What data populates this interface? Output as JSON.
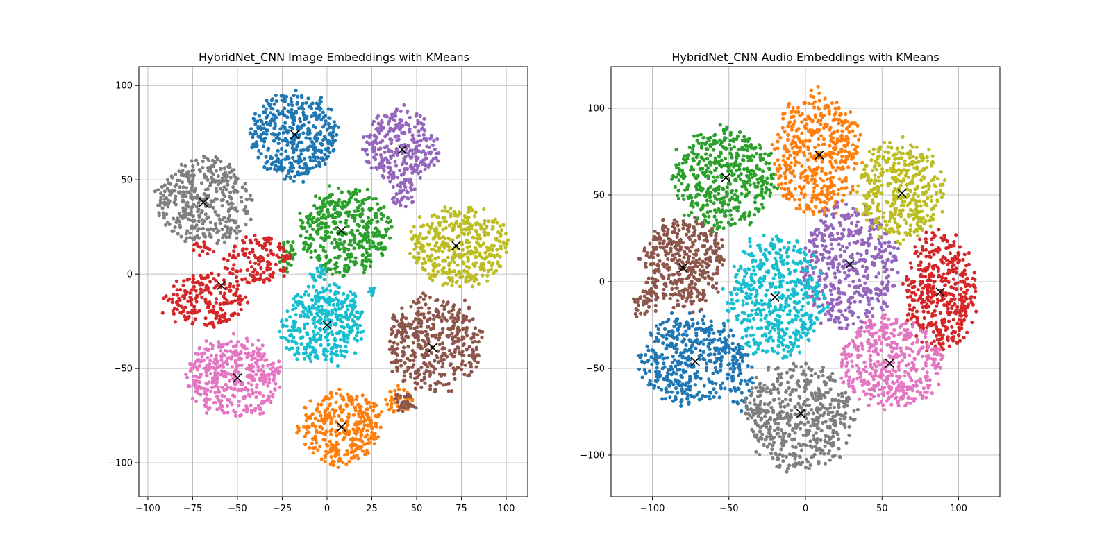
{
  "chart_data": [
    {
      "type": "scatter",
      "title": "HybridNet_CNN Image Embeddings with KMeans",
      "xlabel": "",
      "ylabel": "",
      "xlim": [
        -105,
        112
      ],
      "ylim": [
        -118,
        110
      ],
      "xticks": [
        -100,
        -75,
        -50,
        -25,
        0,
        25,
        50,
        75,
        100
      ],
      "xtick_labels": [
        "−100",
        "−75",
        "−50",
        "−25",
        "0",
        "25",
        "50",
        "75",
        "100"
      ],
      "yticks": [
        -100,
        -50,
        0,
        50,
        100
      ],
      "ytick_labels": [
        "−100",
        "−50",
        "0",
        "50",
        "100"
      ],
      "grid": true,
      "clusters": [
        {
          "color": "#1f77b4",
          "centroid": [
            -18,
            74
          ],
          "blobs": [
            {
              "cx": -18,
              "cy": 74,
              "rx": 25,
              "ry": 24,
              "n": 420
            }
          ]
        },
        {
          "color": "#ff7f0e",
          "centroid": [
            8,
            -81
          ],
          "blobs": [
            {
              "cx": 8,
              "cy": -81,
              "rx": 24,
              "ry": 20,
              "n": 330
            },
            {
              "cx": 40,
              "cy": -67,
              "rx": 8,
              "ry": 7,
              "n": 40
            }
          ]
        },
        {
          "color": "#2ca02c",
          "centroid": [
            8,
            23
          ],
          "blobs": [
            {
              "cx": 10,
              "cy": 23,
              "rx": 26,
              "ry": 24,
              "n": 420
            },
            {
              "cx": -22,
              "cy": 10,
              "rx": 5,
              "ry": 8,
              "n": 30
            }
          ]
        },
        {
          "color": "#d62728",
          "centroid": [
            -59,
            -6
          ],
          "blobs": [
            {
              "cx": -40,
              "cy": 8,
              "rx": 20,
              "ry": 13,
              "n": 150
            },
            {
              "cx": -68,
              "cy": -14,
              "rx": 25,
              "ry": 14,
              "n": 200
            },
            {
              "cx": -70,
              "cy": 13,
              "rx": 6,
              "ry": 3,
              "n": 15
            }
          ]
        },
        {
          "color": "#9467bd",
          "centroid": [
            42,
            66
          ],
          "blobs": [
            {
              "cx": 41,
              "cy": 67,
              "rx": 21,
              "ry": 21,
              "n": 300
            },
            {
              "cx": 43,
              "cy": 42,
              "rx": 7,
              "ry": 8,
              "n": 40
            }
          ]
        },
        {
          "color": "#8c564b",
          "centroid": [
            59,
            -39
          ],
          "blobs": [
            {
              "cx": 60,
              "cy": -37,
              "rx": 28,
              "ry": 26,
              "n": 420
            },
            {
              "cx": 43,
              "cy": -68,
              "rx": 6,
              "ry": 6,
              "n": 30
            }
          ]
        },
        {
          "color": "#e377c2",
          "centroid": [
            -50,
            -55
          ],
          "blobs": [
            {
              "cx": -52,
              "cy": -55,
              "rx": 27,
              "ry": 22,
              "n": 420
            }
          ]
        },
        {
          "color": "#7f7f7f",
          "centroid": [
            -69,
            38
          ],
          "blobs": [
            {
              "cx": -68,
              "cy": 38,
              "rx": 27,
              "ry": 24,
              "n": 400
            }
          ]
        },
        {
          "color": "#bcbd22",
          "centroid": [
            72,
            15
          ],
          "blobs": [
            {
              "cx": 73,
              "cy": 15,
              "rx": 28,
              "ry": 22,
              "n": 420
            }
          ]
        },
        {
          "color": "#17becf",
          "centroid": [
            0,
            -27
          ],
          "blobs": [
            {
              "cx": -2,
              "cy": -27,
              "rx": 24,
              "ry": 22,
              "n": 380
            },
            {
              "cx": -5,
              "cy": 0,
              "rx": 6,
              "ry": 4,
              "n": 20
            },
            {
              "cx": 26,
              "cy": -9,
              "rx": 3,
              "ry": 3,
              "n": 10
            }
          ]
        }
      ]
    },
    {
      "type": "scatter",
      "title": "HybridNet_CNN Audio Embeddings with KMeans",
      "xlabel": "",
      "ylabel": "",
      "xlim": [
        -127,
        127
      ],
      "ylim": [
        -124,
        124
      ],
      "xticks": [
        -100,
        -50,
        0,
        50,
        100
      ],
      "xtick_labels": [
        "−100",
        "−50",
        "0",
        "50",
        "100"
      ],
      "yticks": [
        -100,
        -50,
        0,
        50,
        100
      ],
      "ytick_labels": [
        "−100",
        "−50",
        "0",
        "50",
        "100"
      ],
      "grid": true,
      "clusters": [
        {
          "color": "#1f77b4",
          "centroid": [
            -72,
            -46
          ],
          "blobs": [
            {
              "cx": -75,
              "cy": -45,
              "rx": 35,
              "ry": 27,
              "n": 420
            },
            {
              "cx": -42,
              "cy": -55,
              "rx": 8,
              "ry": 20,
              "n": 60
            }
          ]
        },
        {
          "color": "#ff7f0e",
          "centroid": [
            9,
            73
          ],
          "blobs": [
            {
              "cx": 7,
              "cy": 73,
              "rx": 30,
              "ry": 36,
              "n": 460
            }
          ]
        },
        {
          "color": "#2ca02c",
          "centroid": [
            -52,
            60
          ],
          "blobs": [
            {
              "cx": -53,
              "cy": 60,
              "rx": 35,
              "ry": 30,
              "n": 470
            }
          ]
        },
        {
          "color": "#d62728",
          "centroid": [
            88,
            -6
          ],
          "blobs": [
            {
              "cx": 88,
              "cy": -6,
              "rx": 25,
              "ry": 36,
              "n": 420
            }
          ]
        },
        {
          "color": "#9467bd",
          "centroid": [
            29,
            10
          ],
          "blobs": [
            {
              "cx": 28,
              "cy": 8,
              "rx": 33,
              "ry": 38,
              "n": 470
            }
          ]
        },
        {
          "color": "#8c564b",
          "centroid": [
            -80,
            8
          ],
          "blobs": [
            {
              "cx": -80,
              "cy": 10,
              "rx": 28,
              "ry": 28,
              "n": 420
            },
            {
              "cx": -105,
              "cy": -12,
              "rx": 8,
              "ry": 10,
              "n": 40
            }
          ]
        },
        {
          "color": "#e377c2",
          "centroid": [
            55,
            -47
          ],
          "blobs": [
            {
              "cx": 55,
              "cy": -47,
              "rx": 35,
              "ry": 27,
              "n": 450
            }
          ]
        },
        {
          "color": "#7f7f7f",
          "centroid": [
            -3,
            -76
          ],
          "blobs": [
            {
              "cx": -4,
              "cy": -78,
              "rx": 37,
              "ry": 32,
              "n": 500
            }
          ]
        },
        {
          "color": "#bcbd22",
          "centroid": [
            63,
            51
          ],
          "blobs": [
            {
              "cx": 62,
              "cy": 52,
              "rx": 30,
              "ry": 30,
              "n": 420
            }
          ]
        },
        {
          "color": "#17becf",
          "centroid": [
            -20,
            -9
          ],
          "blobs": [
            {
              "cx": -20,
              "cy": -9,
              "rx": 32,
              "ry": 37,
              "n": 500
            }
          ]
        }
      ]
    }
  ]
}
